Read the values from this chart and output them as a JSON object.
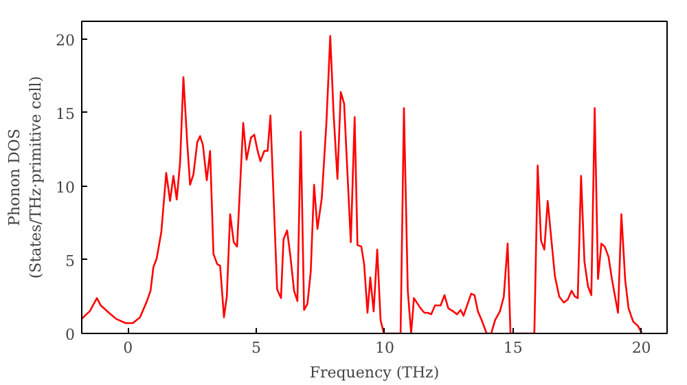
{
  "chart_data": {
    "type": "line",
    "xlabel": "Frequency (THz)",
    "ylabel": "Phonon DOS\n(States/THz·primitive cell)",
    "xlim": [
      -1.8,
      21
    ],
    "ylim": [
      0,
      21.2
    ],
    "xticks": [
      0,
      5,
      10,
      15,
      20
    ],
    "yticks": [
      0,
      5,
      10,
      15,
      20
    ],
    "grid": false,
    "marker": "none",
    "line_style": "solid",
    "series": [
      {
        "color": "#ff0000",
        "x": [
          -1.79,
          -1.68,
          -1.49,
          -1.21,
          -1.06,
          -0.74,
          -0.47,
          -0.09,
          0.19,
          0.47,
          0.74,
          0.88,
          0.99,
          1.12,
          1.3,
          1.49,
          1.64,
          1.77,
          1.9,
          2.03,
          2.16,
          2.31,
          2.42,
          2.55,
          2.7,
          2.81,
          2.92,
          3.07,
          3.2,
          3.33,
          3.48,
          3.59,
          3.74,
          3.85,
          3.98,
          4.12,
          4.25,
          4.49,
          4.62,
          4.79,
          4.92,
          5.05,
          5.16,
          5.31,
          5.44,
          5.55,
          5.81,
          5.96,
          6.06,
          6.2,
          6.33,
          6.47,
          6.6,
          6.73,
          6.86,
          6.99,
          7.12,
          7.25,
          7.38,
          7.55,
          7.73,
          7.88,
          8.01,
          8.16,
          8.29,
          8.42,
          8.53,
          8.68,
          8.83,
          8.94,
          9.09,
          9.2,
          9.33,
          9.44,
          9.57,
          9.71,
          9.84,
          9.97,
          10.62,
          10.75,
          10.9,
          11.03,
          11.14,
          11.4,
          11.55,
          11.68,
          11.81,
          11.96,
          12.18,
          12.33,
          12.48,
          12.67,
          12.82,
          12.96,
          13.07,
          13.37,
          13.5,
          13.63,
          13.78,
          13.97,
          14.15,
          14.3,
          14.49,
          14.64,
          14.79,
          14.9,
          15.83,
          15.96,
          16.09,
          16.22,
          16.35,
          16.48,
          16.63,
          16.8,
          16.98,
          17.13,
          17.28,
          17.41,
          17.52,
          17.65,
          17.78,
          17.92,
          18.05,
          18.18,
          18.31,
          18.44,
          18.57,
          18.72,
          18.85,
          19.09,
          19.22,
          19.37,
          19.5,
          19.68,
          19.87,
          20.02
        ],
        "values": [
          1.0,
          1.2,
          1.5,
          2.4,
          1.9,
          1.4,
          1.0,
          0.7,
          0.7,
          1.1,
          2.2,
          2.9,
          4.5,
          5.1,
          6.9,
          10.9,
          9.0,
          10.7,
          9.1,
          11.6,
          17.4,
          12.9,
          10.1,
          10.8,
          13.0,
          13.4,
          12.8,
          10.4,
          12.4,
          5.4,
          4.7,
          4.6,
          1.1,
          2.5,
          8.1,
          6.2,
          5.9,
          14.3,
          11.8,
          13.3,
          13.5,
          12.4,
          11.7,
          12.4,
          12.4,
          14.8,
          3.0,
          2.4,
          6.4,
          7.0,
          5.2,
          2.9,
          2.2,
          13.7,
          1.6,
          2.0,
          4.2,
          10.1,
          7.1,
          9.2,
          14.3,
          20.2,
          14.9,
          10.5,
          16.4,
          15.6,
          11.6,
          6.2,
          14.7,
          6.0,
          5.9,
          4.7,
          1.4,
          3.8,
          1.5,
          5.7,
          0.9,
          0,
          0,
          15.3,
          2.9,
          0,
          2.4,
          1.7,
          1.4,
          1.4,
          1.3,
          1.9,
          1.9,
          2.6,
          1.7,
          1.5,
          1.3,
          1.6,
          1.2,
          2.7,
          2.6,
          1.5,
          0.9,
          0,
          0,
          0.9,
          1.5,
          2.5,
          6.1,
          0,
          0,
          11.4,
          6.3,
          5.7,
          9.0,
          6.6,
          3.9,
          2.5,
          2.1,
          2.3,
          2.9,
          2.5,
          2.4,
          10.7,
          4.9,
          3.2,
          2.6,
          15.3,
          3.7,
          6.1,
          5.9,
          5.2,
          3.7,
          1.4,
          8.1,
          3.6,
          1.7,
          0.8,
          0.5,
          0
        ]
      }
    ]
  }
}
